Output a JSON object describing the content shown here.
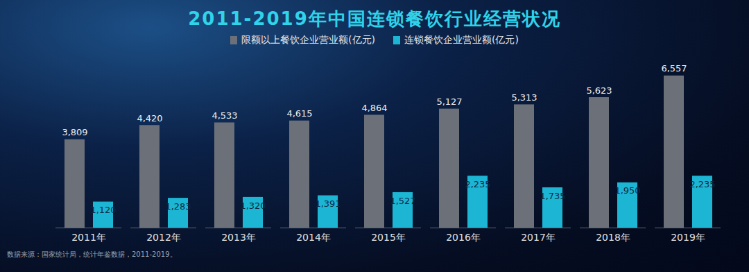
{
  "chart_data": {
    "type": "bar",
    "title": "2011-2019年中国连锁餐饮行业经营状况",
    "categories": [
      "2011年",
      "2012年",
      "2013年",
      "2014年",
      "2015年",
      "2016年",
      "2017年",
      "2018年",
      "2019年"
    ],
    "series": [
      {
        "name": "限额以上餐饮企业营业额(亿元)",
        "color": "#6b7079",
        "values": [
          3809,
          4420,
          4533,
          4615,
          4864,
          5127,
          5313,
          5623,
          6557
        ],
        "value_labels": [
          "3,809",
          "4,420",
          "4,533",
          "4,615",
          "4,864",
          "5,127",
          "5,313",
          "5,623",
          "6,557"
        ]
      },
      {
        "name": "连锁餐饮企业营业额(亿元)",
        "color": "#1cb6d4",
        "values": [
          1120,
          1283,
          1320,
          1391,
          1527,
          2235,
          1735,
          1950,
          2235
        ],
        "value_labels": [
          "1,120",
          "1,283",
          "1,320",
          "1,391",
          "1,527",
          "2,235",
          "1,735",
          "1,950",
          "2,235"
        ]
      }
    ],
    "ylim": [
      0,
      7000
    ],
    "grid": false,
    "data_labels": true,
    "tick_labels": "x",
    "legend": "top",
    "annotations": [
      "数据来源：国家统计局，统计年鉴数据，2011-2019。"
    ]
  }
}
